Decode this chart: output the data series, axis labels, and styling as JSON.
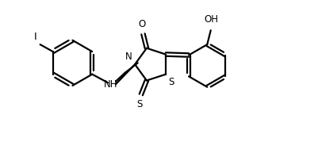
{
  "bg_color": "#ffffff",
  "line_color": "#000000",
  "line_width": 1.6,
  "font_size": 8.5,
  "fig_width": 4.01,
  "fig_height": 1.98,
  "dpi": 100,
  "xlim": [
    -1.1,
    2.5
  ],
  "ylim": [
    -1.1,
    1.1
  ]
}
